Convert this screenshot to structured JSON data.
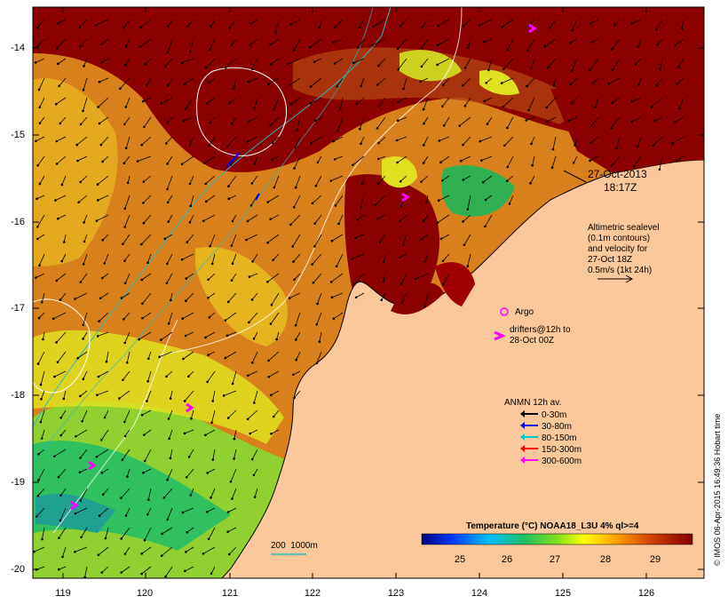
{
  "map": {
    "date_line1": "27-Oct-2013",
    "date_line2": "18:17Z",
    "altimetry_note": [
      "Altimetric sealevel",
      "(0.1m contours)",
      "and velocity for",
      "27-Oct 18Z",
      "0.5m/s (1kt 24h)"
    ],
    "argo_label": "Argo",
    "drifters_label": [
      "drifters@12h to",
      "28-Oct 00Z"
    ],
    "anmn_title": "ANMN 12h av.",
    "anmn_items": [
      {
        "label": "0-30m",
        "color": "#000000"
      },
      {
        "label": "30-80m",
        "color": "#0000ff"
      },
      {
        "label": "80-150m",
        "color": "#00cccc"
      },
      {
        "label": "150-300m",
        "color": "#ff0000"
      },
      {
        "label": "300-600m",
        "color": "#ff00ff"
      }
    ],
    "bathy_label": "200  1000m",
    "colorbar_title": "Temperature (°C) NOAA18_L3U 4% ql>=4",
    "colorbar_ticks": [
      "25",
      "26",
      "27",
      "28",
      "29"
    ],
    "credit": "© IMOS 06-Apr-2015 16:49:36 Hobart time",
    "lat_ticks": [
      "-14",
      "-15",
      "-16",
      "-17",
      "-18",
      "-19",
      "-20"
    ],
    "lon_ticks": [
      "119",
      "120",
      "121",
      "122",
      "123",
      "124",
      "125",
      "126"
    ],
    "colors": {
      "land": "#fbc89b",
      "hot": "#8b0000",
      "warm": "#c45a10",
      "mid": "#e8a020",
      "cool": "#c8e020",
      "cold": "#30c050",
      "teal": "#20a090"
    }
  }
}
